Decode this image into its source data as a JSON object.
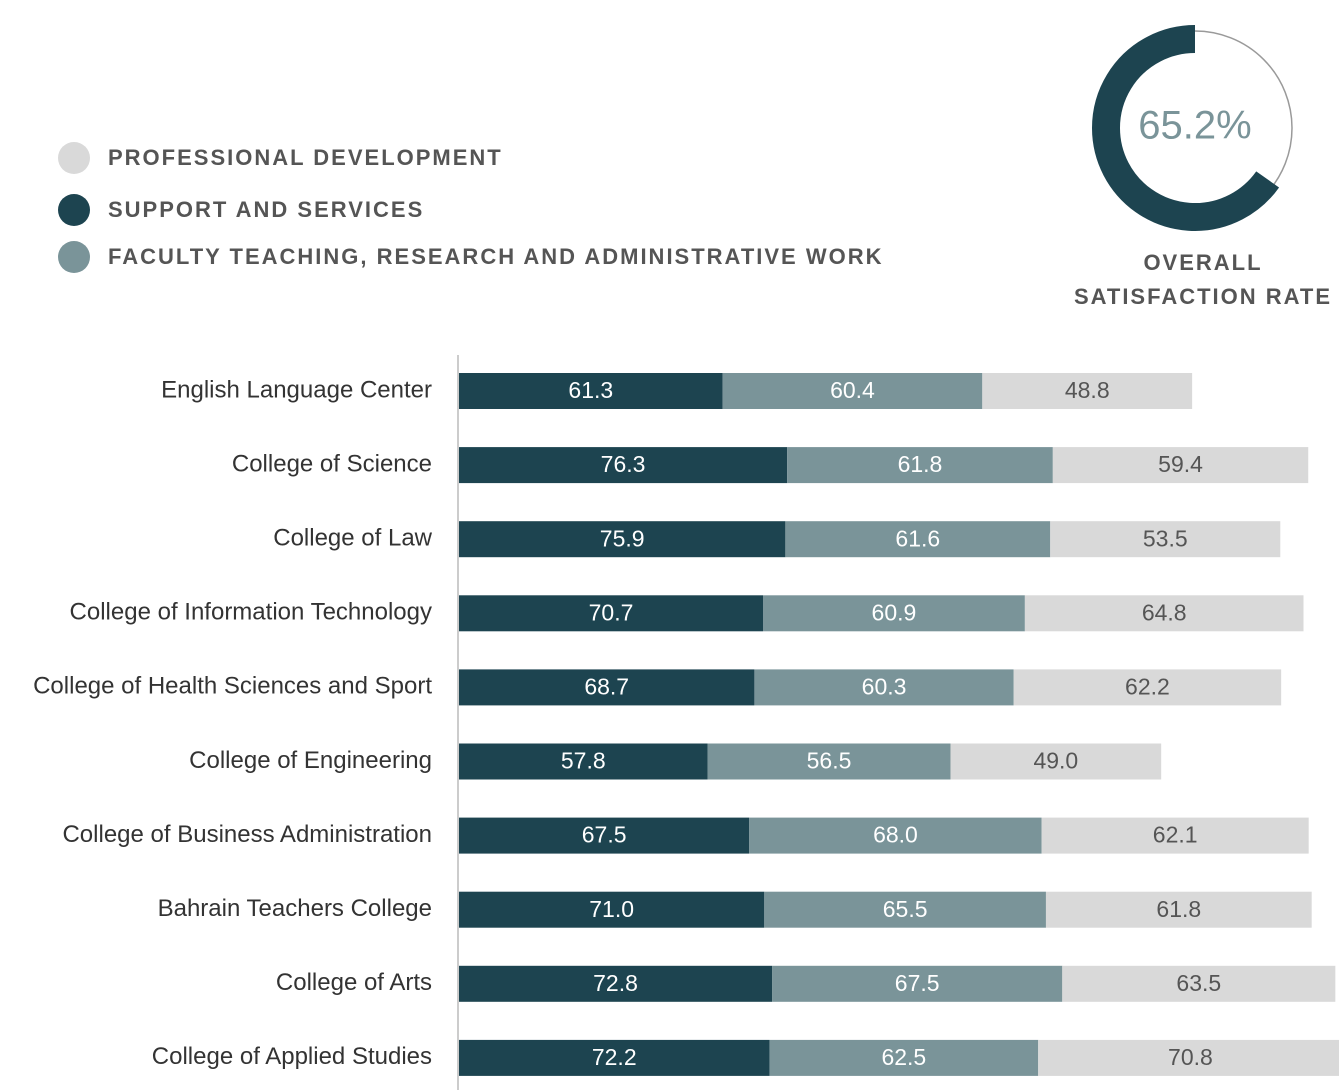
{
  "chart_data": [
    {
      "type": "donut",
      "title": "OVERALL SATISFACTION RATE",
      "values": [
        65.2
      ],
      "value_labels": [
        "65.2%"
      ],
      "color": "#1d4450",
      "track_color": "#9a9a9a",
      "label_color": "#7a9499"
    },
    {
      "type": "stacked_barh",
      "categories": [
        "English Language Center",
        "College of Science",
        "College of Law",
        "College of Information Technology",
        "College of Health Sciences and Sport",
        "College of Engineering",
        "College of Business Administration",
        "Bahrain Teachers College",
        "College of Arts",
        "College of Applied Studies"
      ],
      "series": [
        {
          "name": "SUPPORT AND SERVICES",
          "color": "#1d4450",
          "values": [
            61.3,
            76.3,
            75.9,
            70.7,
            68.7,
            57.8,
            67.5,
            71.0,
            72.8,
            72.2
          ],
          "value_labels": [
            "61.3",
            "76.3",
            "75.9",
            "70.7",
            "68.7",
            "57.8",
            "67.5",
            "71.0",
            "72.8",
            "72.2"
          ]
        },
        {
          "name": "FACULTY TEACHING, RESEARCH AND ADMINISTRATIVE WORK",
          "color": "#7a9499",
          "values": [
            60.4,
            61.8,
            61.6,
            60.9,
            60.3,
            56.5,
            68.0,
            65.5,
            67.5,
            62.5
          ],
          "value_labels": [
            "60.4",
            "61.8",
            "61.6",
            "60.9",
            "60.3",
            "56.5",
            "68.0",
            "65.5",
            "67.5",
            "62.5"
          ]
        },
        {
          "name": "PROFESSIONAL DEVELOPMENT",
          "color": "#d9d9d9",
          "values": [
            48.8,
            59.4,
            53.5,
            64.8,
            62.2,
            49.0,
            62.1,
            61.8,
            63.5,
            70.8
          ],
          "value_labels": [
            "48.8",
            "59.4",
            "53.5",
            "64.8",
            "62.2",
            "49.0",
            "62.1",
            "61.8",
            "63.5",
            "70.8"
          ]
        }
      ]
    }
  ]
}
